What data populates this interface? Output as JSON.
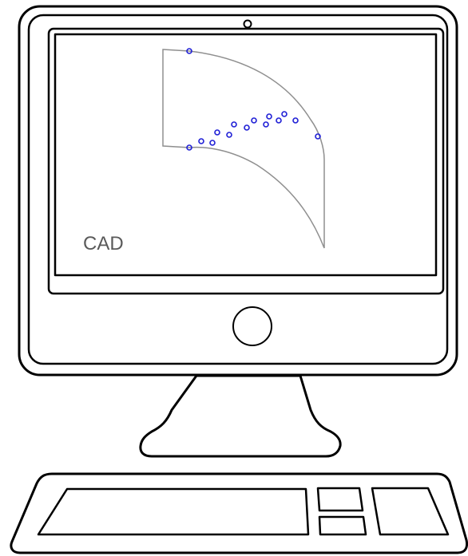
{
  "screen": {
    "label": "CAD"
  },
  "colors": {
    "outline": "#000000",
    "curve": "#8f8f8f",
    "points": "#1f1fd6",
    "label": "#5a5a5a"
  },
  "icons": {
    "camera": "camera-icon",
    "home_button": "home-button"
  }
}
